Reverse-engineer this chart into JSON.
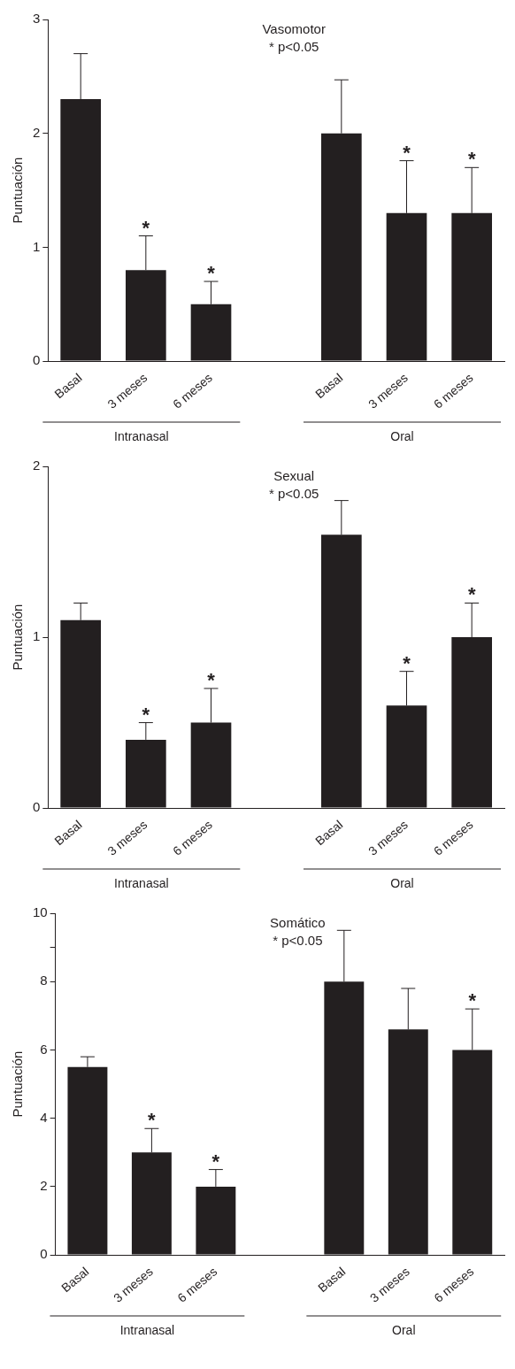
{
  "chart_data": [
    {
      "type": "bar",
      "title": "Vasomotor",
      "subtitle": "* p<0.05",
      "ylabel": "Puntuación",
      "categories": [
        "Basal",
        "3 meses",
        "6 meses",
        null,
        "Basal",
        "3 meses",
        "6 meses"
      ],
      "values": [
        2.3,
        0.8,
        0.5,
        null,
        2.0,
        1.3,
        1.3
      ],
      "color": "#231f20",
      "errors": [
        [
          2.3,
          2.7
        ],
        [
          0.8,
          1.1
        ],
        [
          0.5,
          0.7
        ],
        null,
        [
          2.0,
          2.47
        ],
        [
          1.3,
          1.76
        ],
        [
          1.3,
          1.7
        ]
      ],
      "value_labels": [
        null,
        "*",
        "*",
        null,
        null,
        "*",
        "*"
      ],
      "annotations": [
        "Intranasal",
        "Oral"
      ],
      "ylim": [
        0,
        3
      ],
      "yticks": [
        0,
        1,
        2,
        3
      ]
    },
    {
      "type": "bar",
      "title": "Sexual",
      "subtitle": "* p<0.05",
      "ylabel": "Puntuación",
      "categories": [
        "Basal",
        "3 meses",
        "6 meses",
        null,
        "Basal",
        "3 meses",
        "6 meses"
      ],
      "values": [
        1.1,
        0.4,
        0.5,
        null,
        1.6,
        0.6,
        1.0
      ],
      "color": "#231f20",
      "errors": [
        [
          1.1,
          1.2
        ],
        [
          0.4,
          0.5
        ],
        [
          0.5,
          0.7
        ],
        null,
        [
          1.6,
          1.8
        ],
        [
          0.6,
          0.8
        ],
        [
          1.0,
          1.2
        ]
      ],
      "value_labels": [
        null,
        "*",
        "*",
        null,
        null,
        "*",
        "*"
      ],
      "annotations": [
        "Intranasal",
        "Oral"
      ],
      "ylim": [
        0,
        2
      ],
      "yticks": [
        0,
        1,
        2
      ]
    },
    {
      "type": "bar",
      "title": "Somático",
      "subtitle": "* p<0.05",
      "ylabel": "Puntuación",
      "categories": [
        "Basal",
        "3 meses",
        "6 meses",
        null,
        "Basal",
        "3 meses",
        "6 meses"
      ],
      "values": [
        5.5,
        3.0,
        2.0,
        null,
        8.0,
        6.6,
        6.0
      ],
      "color": "#231f20",
      "errors": [
        [
          5.5,
          5.8
        ],
        [
          3.0,
          3.7
        ],
        [
          2.0,
          2.5
        ],
        null,
        [
          8.0,
          9.5
        ],
        [
          6.6,
          7.8
        ],
        [
          6.0,
          7.2
        ]
      ],
      "value_labels": [
        null,
        "*",
        "*",
        null,
        null,
        null,
        "*"
      ],
      "annotations": [
        "Intranasal",
        "Oral"
      ],
      "ylim": [
        0,
        10
      ],
      "yticks": [
        0,
        2,
        4,
        6,
        8,
        {
          "value": 9,
          "label": null
        },
        10
      ]
    }
  ]
}
